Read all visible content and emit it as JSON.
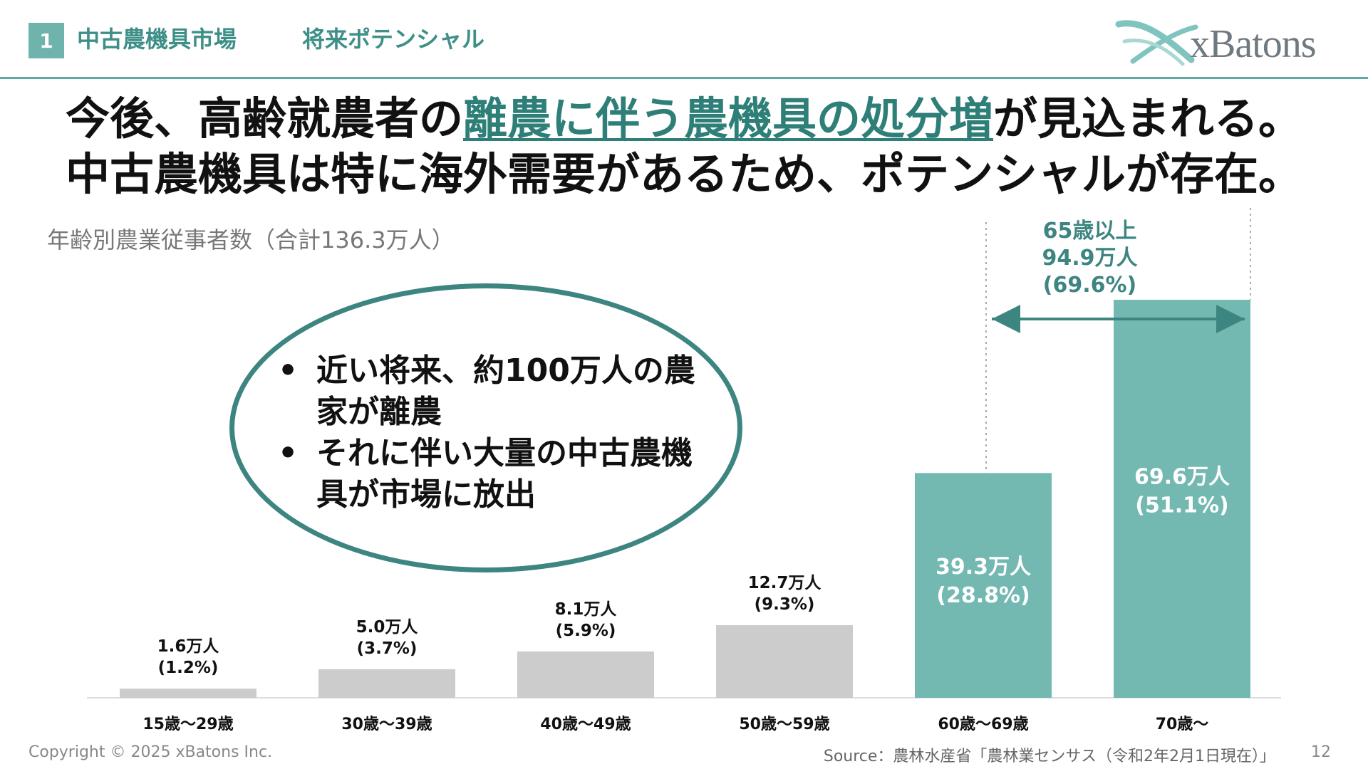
{
  "header": {
    "section_number": "1",
    "section_title": "中古農機具市場",
    "subsection_title": "将来ポテンシャル",
    "logo_text": "xBatons"
  },
  "headline": {
    "line1_pre": "今後、高齢就農者の",
    "line1_accent": "離農に伴う農機具の処分増",
    "line1_post": "が見込まれる。",
    "line2": "中古農機具は特に海外需要があるため、ポテンシャルが存在。"
  },
  "callout": {
    "items": [
      "近い将来、約100万人の農家が離農",
      "それに伴い大量の中古農機具が市場に放出"
    ]
  },
  "bracket": {
    "label_line1": "65歳以上",
    "label_line2": "94.9万人",
    "label_line3": "(69.6%)"
  },
  "chart_data": {
    "type": "bar",
    "title": "年齢別農業従事者数（合計136.3万人）",
    "categories": [
      "15歳～29歳",
      "30歳～39歳",
      "40歳～49歳",
      "50歳～59歳",
      "60歳～69歳",
      "70歳～"
    ],
    "values": [
      1.6,
      5.0,
      8.1,
      12.7,
      39.3,
      69.6
    ],
    "percent": [
      1.2,
      3.7,
      5.9,
      9.3,
      28.8,
      51.1
    ],
    "labels_line1": [
      "1.6万人",
      "5.0万人",
      "8.1万人",
      "12.7万人",
      "39.3万人",
      "69.6万人"
    ],
    "labels_line2": [
      "(1.2%)",
      "(3.7%)",
      "(5.9%)",
      "(9.3%)",
      "(28.8%)",
      "(51.1%)"
    ],
    "highlighted": [
      false,
      false,
      false,
      false,
      true,
      true
    ],
    "ylim": [
      0,
      69.6
    ],
    "colors": {
      "normal": "#cccccc",
      "highlight": "#74b8b2",
      "accent": "#3d8580"
    },
    "grid": false,
    "legend": "none"
  },
  "footer": {
    "copyright": "Copyright © 2025 xBatons Inc.",
    "source": "Source：農林水産省「農林業センサス（令和2年2月1日現在）」",
    "page_number": "12"
  }
}
